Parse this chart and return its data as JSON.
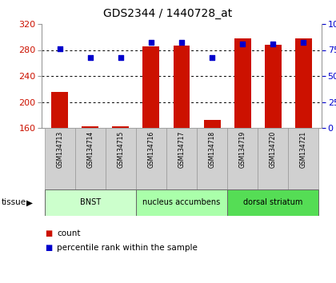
{
  "title": "GDS2344 / 1440728_at",
  "samples": [
    "GSM134713",
    "GSM134714",
    "GSM134715",
    "GSM134716",
    "GSM134717",
    "GSM134718",
    "GSM134719",
    "GSM134720",
    "GSM134721"
  ],
  "count_values": [
    215,
    162,
    163,
    285,
    287,
    172,
    298,
    288,
    298
  ],
  "percentile_values": [
    76,
    68,
    68,
    82,
    82,
    68,
    81,
    81,
    82
  ],
  "ylim_left": [
    160,
    320
  ],
  "ylim_right": [
    0,
    100
  ],
  "yticks_left": [
    160,
    200,
    240,
    280,
    320
  ],
  "yticks_right": [
    0,
    25,
    50,
    75,
    100
  ],
  "bar_color": "#cc1100",
  "dot_color": "#0000cc",
  "tissue_groups": [
    {
      "label": "BNST",
      "start": 0,
      "end": 3,
      "color": "#ccffcc"
    },
    {
      "label": "nucleus accumbens",
      "start": 3,
      "end": 6,
      "color": "#aaffaa"
    },
    {
      "label": "dorsal striatum",
      "start": 6,
      "end": 9,
      "color": "#55dd55"
    }
  ],
  "legend_count_label": "count",
  "legend_pct_label": "percentile rank within the sample",
  "tissue_label": "tissue",
  "bar_color_legend": "#cc1100",
  "dot_color_legend": "#0000cc",
  "right_axis_color": "#0000cc",
  "grid_color": "#000000",
  "bg_color": "#ffffff",
  "tick_label_color_left": "#cc1100",
  "tick_label_color_right": "#0000cc",
  "sample_box_color": "#d0d0d0",
  "sample_box_edge": "#999999"
}
